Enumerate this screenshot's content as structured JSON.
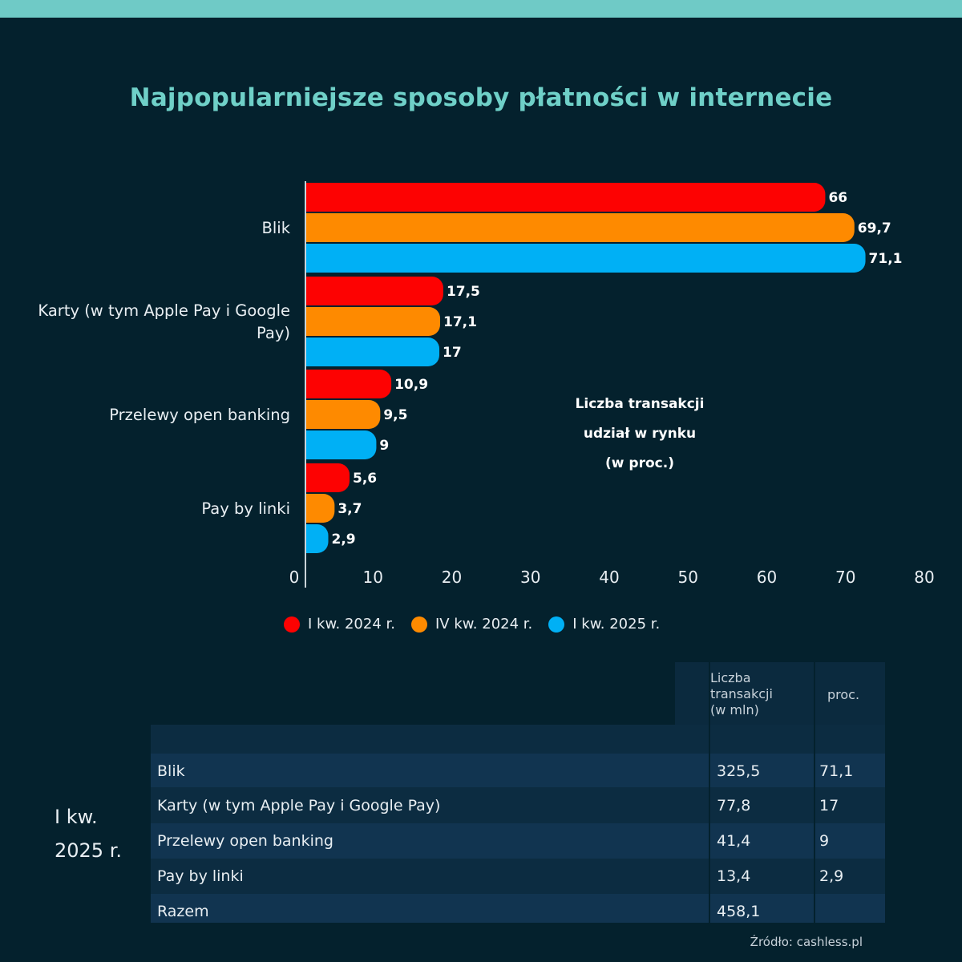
{
  "title": "Najpopularniejsze sposoby płatności w internecie",
  "annotation": [
    "Liczba transakcji",
    "udział w rynku",
    "(w proc.)"
  ],
  "legend": [
    {
      "label": "I kw. 2024 r.",
      "color": "#fd0202"
    },
    {
      "label": "IV kw. 2024 r.",
      "color": "#fe8a00"
    },
    {
      "label": "I kw. 2025 r.",
      "color": "#00b0f5"
    }
  ],
  "chart_data": {
    "type": "bar",
    "orientation": "horizontal",
    "title": "Najpopularniejsze sposoby płatności w internecie",
    "categories": [
      [
        "Blik"
      ],
      [
        "Karty (w tym Apple Pay i Google",
        "Pay)"
      ],
      [
        "Przelewy open banking"
      ],
      [
        "Pay by linki"
      ]
    ],
    "series": [
      {
        "name": "I kw. 2024 r.",
        "color": "#fd0202",
        "values": [
          66,
          17.5,
          10.9,
          5.6
        ],
        "labels": [
          "66",
          "17,5",
          "10,9",
          "5,6"
        ]
      },
      {
        "name": "IV kw. 2024 r.",
        "color": "#fe8a00",
        "values": [
          69.7,
          17.1,
          9.5,
          3.7
        ],
        "labels": [
          "69,7",
          "17,1",
          "9,5",
          "3,7"
        ]
      },
      {
        "name": "I kw. 2025 r.",
        "color": "#00b0f5",
        "values": [
          71.1,
          17,
          9,
          2.9
        ],
        "labels": [
          "71,1",
          "17",
          "9",
          "2,9"
        ]
      }
    ],
    "xlim": [
      0,
      80
    ],
    "ticks": [
      0,
      10,
      20,
      30,
      40,
      50,
      60,
      70,
      80
    ],
    "grid": false,
    "legend_position": "bottom"
  },
  "table": {
    "period_lines": [
      "I kw.",
      "2025 r."
    ],
    "headers": {
      "count": [
        "Liczba",
        "transakcji",
        "(w mln)"
      ],
      "percent": "proc."
    },
    "rows": [
      {
        "name": "Blik",
        "count": "325,5",
        "percent": "71,1"
      },
      {
        "name": "Karty (w tym Apple Pay i Google Pay)",
        "count": "77,8",
        "percent": "17"
      },
      {
        "name": "Przelewy open banking",
        "count": "41,4",
        "percent": "9"
      },
      {
        "name": "Pay by linki",
        "count": "13,4",
        "percent": "2,9"
      },
      {
        "name": "Razem",
        "count": "458,1",
        "percent": ""
      }
    ]
  },
  "source": "Źródło: cashless.pl"
}
